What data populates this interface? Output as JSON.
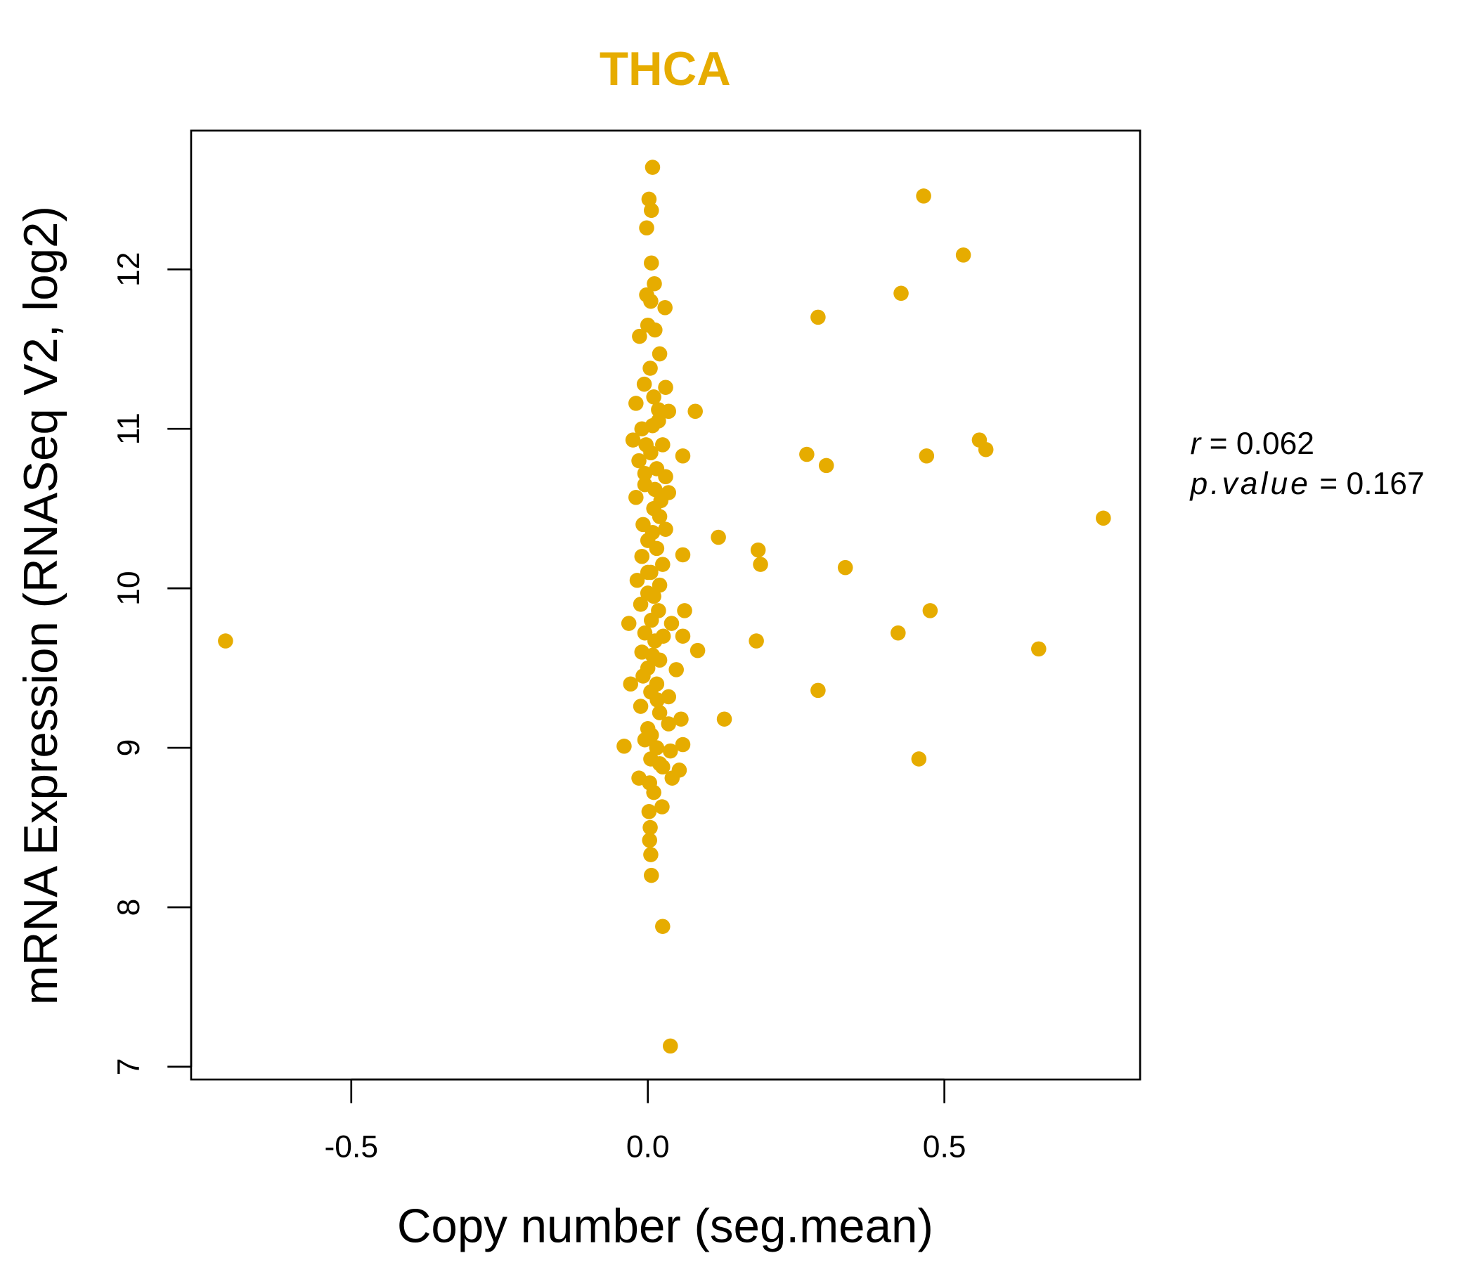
{
  "chart_data": {
    "type": "scatter",
    "title": "THCA",
    "xlabel": "Copy number (seg.mean)",
    "ylabel": "mRNA Expression (RNASeq V2, log2)",
    "xlim": [
      -0.77,
      0.83
    ],
    "ylim": [
      6.92,
      12.87
    ],
    "xticks": [
      -0.5,
      0.0,
      0.5
    ],
    "xtick_labels": [
      "-0.5",
      "0.0",
      "0.5"
    ],
    "yticks": [
      7,
      8,
      9,
      10,
      11,
      12
    ],
    "ytick_labels": [
      "7",
      "8",
      "9",
      "10",
      "11",
      "12"
    ],
    "color": "#E6AC00",
    "annotation": {
      "r_label": "r",
      "r_value": "0.062",
      "p_label": "p.value",
      "p_value": "0.167"
    },
    "points": [
      [
        -0.712,
        9.67
      ],
      [
        0.465,
        12.46
      ],
      [
        0.532,
        12.09
      ],
      [
        0.427,
        11.85
      ],
      [
        0.287,
        11.7
      ],
      [
        0.08,
        11.11
      ],
      [
        0.268,
        10.84
      ],
      [
        0.301,
        10.77
      ],
      [
        0.47,
        10.83
      ],
      [
        0.559,
        10.93
      ],
      [
        0.57,
        10.87
      ],
      [
        0.768,
        10.44
      ],
      [
        0.119,
        10.32
      ],
      [
        0.186,
        10.24
      ],
      [
        0.19,
        10.15
      ],
      [
        0.333,
        10.13
      ],
      [
        0.059,
        10.21
      ],
      [
        0.059,
        10.83
      ],
      [
        0.476,
        9.86
      ],
      [
        0.422,
        9.72
      ],
      [
        0.183,
        9.67
      ],
      [
        0.659,
        9.62
      ],
      [
        0.084,
        9.61
      ],
      [
        0.287,
        9.36
      ],
      [
        0.129,
        9.18
      ],
      [
        0.457,
        8.93
      ],
      [
        -0.04,
        9.01
      ],
      [
        -0.032,
        9.78
      ],
      [
        -0.029,
        9.4
      ],
      [
        0.038,
        7.13
      ],
      [
        0.025,
        7.88
      ],
      [
        0.006,
        8.2
      ],
      [
        0.008,
        12.64
      ],
      [
        0.002,
        12.44
      ],
      [
        0.006,
        12.37
      ],
      [
        -0.002,
        12.26
      ],
      [
        0.006,
        12.04
      ],
      [
        0.011,
        11.91
      ],
      [
        0.029,
        11.76
      ],
      [
        0.062,
        9.86
      ],
      [
        0.059,
        9.7
      ],
      [
        0.048,
        9.49
      ],
      [
        0.056,
        9.18
      ],
      [
        0.059,
        9.02
      ],
      [
        0.053,
        8.86
      ],
      [
        0.041,
        8.81
      ],
      [
        0.024,
        8.63
      ],
      [
        0.002,
        8.6
      ],
      [
        0.004,
        8.5
      ],
      [
        0.003,
        8.42
      ],
      [
        0.005,
        8.33
      ],
      [
        -0.014,
        11.58
      ],
      [
        -0.002,
        11.84
      ],
      [
        0.005,
        11.8
      ],
      [
        0.0,
        11.65
      ],
      [
        0.012,
        11.62
      ],
      [
        0.02,
        11.47
      ],
      [
        0.004,
        11.38
      ],
      [
        -0.006,
        11.28
      ],
      [
        0.03,
        11.26
      ],
      [
        0.01,
        11.2
      ],
      [
        -0.02,
        11.16
      ],
      [
        0.035,
        11.11
      ],
      [
        0.018,
        11.05
      ],
      [
        -0.01,
        11.0
      ],
      [
        -0.025,
        10.93
      ],
      [
        0.025,
        10.9
      ],
      [
        0.005,
        10.85
      ],
      [
        -0.015,
        10.8
      ],
      [
        0.015,
        10.75
      ],
      [
        0.03,
        10.7
      ],
      [
        -0.005,
        10.65
      ],
      [
        0.035,
        10.6
      ],
      [
        -0.02,
        10.57
      ],
      [
        0.01,
        10.5
      ],
      [
        0.02,
        10.45
      ],
      [
        -0.008,
        10.4
      ],
      [
        0.03,
        10.37
      ],
      [
        0.0,
        10.3
      ],
      [
        0.015,
        10.25
      ],
      [
        -0.01,
        10.2
      ],
      [
        0.025,
        10.15
      ],
      [
        0.005,
        10.1
      ],
      [
        -0.018,
        10.05
      ],
      [
        0.02,
        10.02
      ],
      [
        0.0,
        9.97
      ],
      [
        -0.012,
        9.9
      ],
      [
        0.018,
        9.86
      ],
      [
        0.006,
        9.8
      ],
      [
        0.04,
        9.78
      ],
      [
        -0.005,
        9.72
      ],
      [
        0.012,
        9.67
      ],
      [
        -0.01,
        9.6
      ],
      [
        0.02,
        9.55
      ],
      [
        0.0,
        9.5
      ],
      [
        -0.008,
        9.45
      ],
      [
        0.015,
        9.4
      ],
      [
        0.005,
        9.35
      ],
      [
        0.035,
        9.32
      ],
      [
        -0.012,
        9.26
      ],
      [
        0.02,
        9.22
      ],
      [
        0.035,
        9.15
      ],
      [
        0.0,
        9.12
      ],
      [
        -0.005,
        9.05
      ],
      [
        0.015,
        9.0
      ],
      [
        0.038,
        8.98
      ],
      [
        0.005,
        8.93
      ],
      [
        0.025,
        8.88
      ],
      [
        -0.015,
        8.81
      ],
      [
        0.01,
        8.72
      ],
      [
        0.003,
        8.78
      ],
      [
        0.012,
        10.62
      ],
      [
        -0.005,
        10.72
      ],
      [
        0.022,
        10.55
      ],
      [
        0.008,
        10.35
      ],
      [
        -0.003,
        10.9
      ],
      [
        0.018,
        11.12
      ],
      [
        0.008,
        11.02
      ],
      [
        0.0,
        10.1
      ],
      [
        0.01,
        9.95
      ],
      [
        0.026,
        9.7
      ],
      [
        0.008,
        9.58
      ],
      [
        0.016,
        9.3
      ],
      [
        0.006,
        9.08
      ],
      [
        0.02,
        8.9
      ]
    ]
  }
}
